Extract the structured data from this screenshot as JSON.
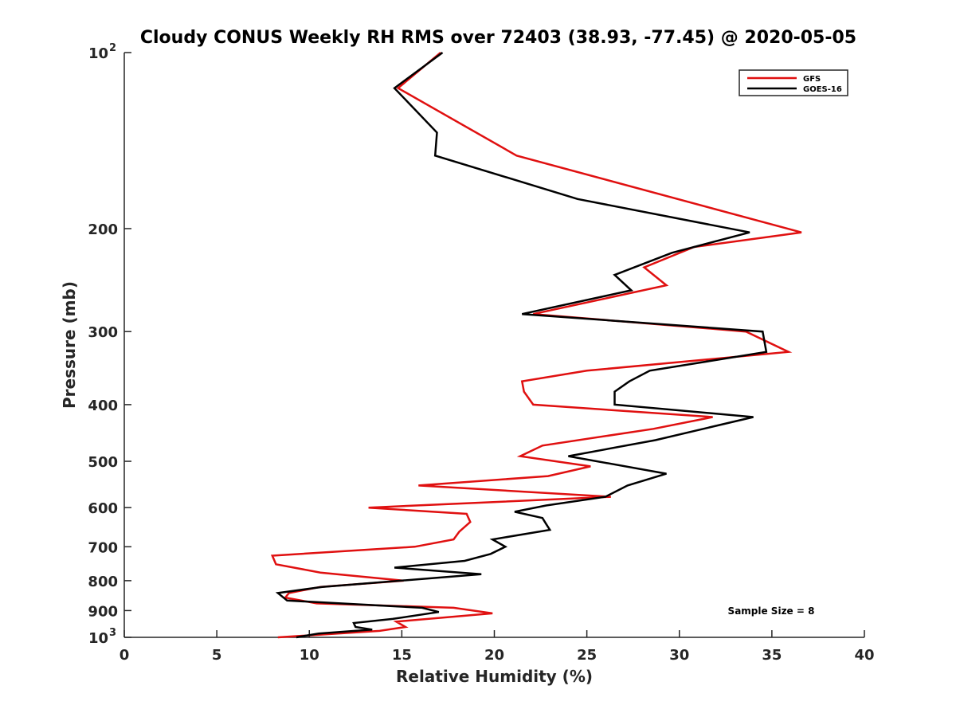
{
  "chart_data": {
    "type": "line",
    "title": "Cloudy CONUS Weekly RH RMS over 72403 (38.93, -77.45) @ 2020-05-05",
    "xlabel": "Relative Humidity (%)",
    "ylabel": "Pressure (mb)",
    "xlim": [
      0,
      40
    ],
    "ylim": [
      100,
      1000
    ],
    "yscale": "log",
    "yreversed": true,
    "grid": false,
    "legend_placement": "top-right",
    "x_ticks": [
      {
        "value": 0,
        "label": "0"
      },
      {
        "value": 5,
        "label": "5"
      },
      {
        "value": 10,
        "label": "10"
      },
      {
        "value": 15,
        "label": "15"
      },
      {
        "value": 20,
        "label": "20"
      },
      {
        "value": 25,
        "label": "25"
      },
      {
        "value": 30,
        "label": "30"
      },
      {
        "value": 35,
        "label": "35"
      },
      {
        "value": 40,
        "label": "40"
      }
    ],
    "y_ticks": [
      {
        "value": 100,
        "label": "10",
        "sup": "2"
      },
      {
        "value": 200,
        "label": "200",
        "sup": ""
      },
      {
        "value": 300,
        "label": "300",
        "sup": ""
      },
      {
        "value": 400,
        "label": "400",
        "sup": ""
      },
      {
        "value": 500,
        "label": "500",
        "sup": ""
      },
      {
        "value": 600,
        "label": "600",
        "sup": ""
      },
      {
        "value": 700,
        "label": "700",
        "sup": ""
      },
      {
        "value": 800,
        "label": "800",
        "sup": ""
      },
      {
        "value": 900,
        "label": "900",
        "sup": ""
      },
      {
        "value": 1000,
        "label": "10",
        "sup": "3"
      }
    ],
    "annotation": "Sample Size = 8",
    "series": [
      {
        "name": "GFS",
        "color": "#e01010",
        "points": [
          [
            17.1,
            100
          ],
          [
            14.8,
            115
          ],
          [
            21.2,
            150
          ],
          [
            36.6,
            203
          ],
          [
            30.8,
            215
          ],
          [
            28.1,
            233
          ],
          [
            29.3,
            250
          ],
          [
            22.1,
            280
          ],
          [
            33.6,
            300
          ],
          [
            35.9,
            325
          ],
          [
            25.0,
            350
          ],
          [
            21.5,
            365
          ],
          [
            21.6,
            380
          ],
          [
            22.1,
            400
          ],
          [
            31.8,
            420
          ],
          [
            28.6,
            440
          ],
          [
            22.6,
            470
          ],
          [
            21.4,
            490
          ],
          [
            25.2,
            510
          ],
          [
            22.9,
            530
          ],
          [
            15.9,
            550
          ],
          [
            26.3,
            575
          ],
          [
            13.2,
            600
          ],
          [
            18.5,
            615
          ],
          [
            18.7,
            635
          ],
          [
            18.1,
            660
          ],
          [
            17.8,
            680
          ],
          [
            15.7,
            700
          ],
          [
            8.0,
            725
          ],
          [
            8.2,
            750
          ],
          [
            10.6,
            775
          ],
          [
            15.1,
            800
          ],
          [
            10.6,
            820
          ],
          [
            8.9,
            840
          ],
          [
            8.7,
            855
          ],
          [
            10.4,
            875
          ],
          [
            17.8,
            890
          ],
          [
            19.9,
            910
          ],
          [
            14.7,
            940
          ],
          [
            15.2,
            960
          ],
          [
            13.8,
            975
          ],
          [
            8.3,
            1000
          ]
        ]
      },
      {
        "name": "GOES-16",
        "color": "#000000",
        "points": [
          [
            17.2,
            100
          ],
          [
            14.6,
            115
          ],
          [
            16.9,
            137
          ],
          [
            16.8,
            150
          ],
          [
            24.5,
            178
          ],
          [
            33.8,
            203
          ],
          [
            29.6,
            220
          ],
          [
            26.5,
            240
          ],
          [
            27.4,
            255
          ],
          [
            21.5,
            280
          ],
          [
            34.5,
            300
          ],
          [
            34.7,
            325
          ],
          [
            28.4,
            350
          ],
          [
            27.3,
            365
          ],
          [
            26.5,
            380
          ],
          [
            26.5,
            400
          ],
          [
            34.0,
            420
          ],
          [
            28.7,
            460
          ],
          [
            24.0,
            490
          ],
          [
            29.3,
            525
          ],
          [
            27.2,
            550
          ],
          [
            26.0,
            575
          ],
          [
            22.8,
            595
          ],
          [
            21.1,
            610
          ],
          [
            22.6,
            625
          ],
          [
            22.8,
            640
          ],
          [
            23.0,
            655
          ],
          [
            19.9,
            680
          ],
          [
            20.6,
            700
          ],
          [
            19.8,
            720
          ],
          [
            18.4,
            740
          ],
          [
            14.6,
            760
          ],
          [
            19.3,
            780
          ],
          [
            10.7,
            820
          ],
          [
            8.3,
            840
          ],
          [
            8.8,
            865
          ],
          [
            16.1,
            890
          ],
          [
            17.0,
            905
          ],
          [
            14.5,
            930
          ],
          [
            12.4,
            945
          ],
          [
            12.5,
            960
          ],
          [
            13.4,
            970
          ],
          [
            10.5,
            985
          ],
          [
            9.3,
            1000
          ]
        ]
      }
    ]
  }
}
